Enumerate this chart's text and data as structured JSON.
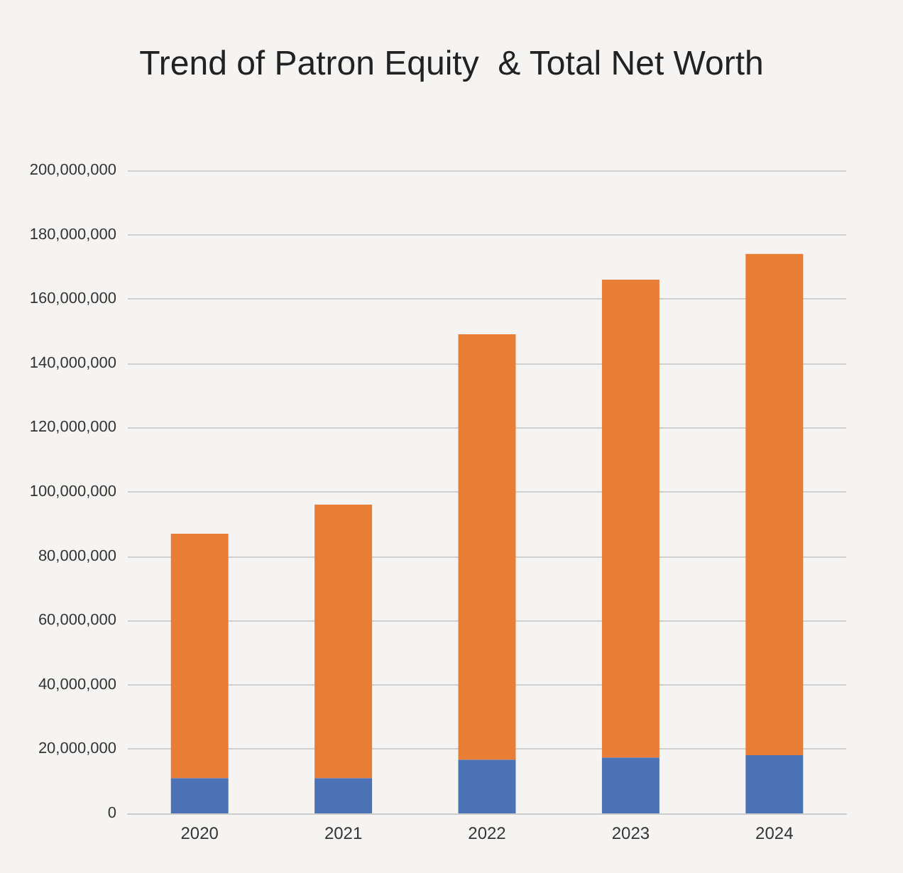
{
  "chart_data": {
    "type": "bar",
    "title": "Trend of Patron Equity  & Total Net Worth",
    "categories": [
      "2020",
      "2021",
      "2022",
      "2023",
      "2024"
    ],
    "stacked": true,
    "series": [
      {
        "color": "#4a72b4",
        "values": [
          11000000,
          11000000,
          16700000,
          17400000,
          18100000
        ]
      },
      {
        "color": "#e87d36",
        "values": [
          76000000,
          85000000,
          132300000,
          148600000,
          155900000
        ]
      }
    ],
    "ylim": [
      0,
      200000000
    ],
    "yticks": [
      {
        "value": 0,
        "label": "0"
      },
      {
        "value": 20000000,
        "label": "20,000,000"
      },
      {
        "value": 40000000,
        "label": "40,000,000"
      },
      {
        "value": 60000000,
        "label": "60,000,000"
      },
      {
        "value": 80000000,
        "label": "80,000,000"
      },
      {
        "value": 100000000,
        "label": "100,000,000"
      },
      {
        "value": 120000000,
        "label": "120,000,000"
      },
      {
        "value": 140000000,
        "label": "140,000,000"
      },
      {
        "value": 160000000,
        "label": "160,000,000"
      },
      {
        "value": 180000000,
        "label": "180,000,000"
      },
      {
        "value": 200000000,
        "label": "200,000,000"
      }
    ],
    "grid": "y"
  }
}
